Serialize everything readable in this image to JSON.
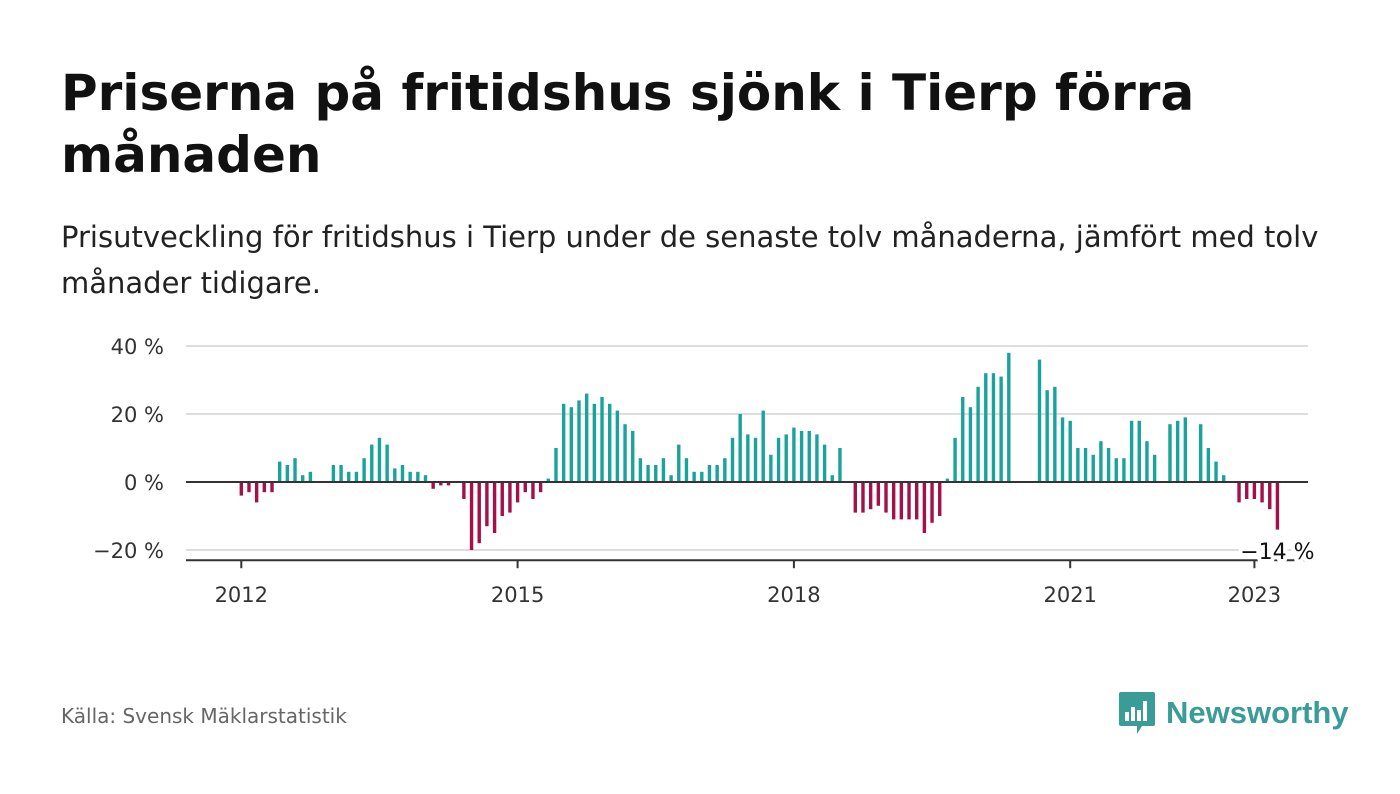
{
  "title": "Priserna på fritidshus sjönk i Tierp förra månaden",
  "subtitle": "Prisutveckling för fritidshus i Tierp under de senaste tolv månaderna, jämfört med tolv månader tidigare.",
  "source": "Källa: Svensk Mäklarstatistik",
  "brand": {
    "name": "Newsworthy",
    "color": "#3a9c96"
  },
  "chart_data": {
    "type": "bar",
    "x_start": "2012-01",
    "y_unit": "%",
    "ylim": [
      -23,
      40
    ],
    "y_ticks": [
      40,
      20,
      0,
      -20
    ],
    "y_tick_labels": [
      "40 %",
      "20 %",
      "0 %",
      "−20 %"
    ],
    "x_ticks": [
      "2012",
      "2015",
      "2018",
      "2021",
      "2023"
    ],
    "grid": true,
    "colors": {
      "positive": "#1aa39a",
      "negative": "#a3104a"
    },
    "last_value_label": "−14 %",
    "values": [
      -4,
      -3,
      -6,
      -3,
      -3,
      6,
      5,
      7,
      2,
      3,
      null,
      null,
      5,
      5,
      3,
      3,
      7,
      11,
      13,
      11,
      4,
      5,
      3,
      3,
      2,
      -2,
      -1,
      -1,
      null,
      -5,
      -20,
      -18,
      -13,
      -15,
      -10,
      -9,
      -6,
      -3,
      -5,
      -3,
      1,
      10,
      23,
      22,
      24,
      26,
      23,
      25,
      23,
      21,
      17,
      15,
      7,
      5,
      5,
      7,
      2,
      11,
      7,
      3,
      3,
      5,
      5,
      7,
      13,
      20,
      14,
      13,
      21,
      8,
      13,
      14,
      16,
      15,
      15,
      14,
      11,
      2,
      10,
      null,
      -9,
      -9,
      -8,
      -7,
      -9,
      -11,
      -11,
      -11,
      -11,
      -15,
      -12,
      -10,
      1,
      13,
      25,
      22,
      28,
      32,
      32,
      31,
      38,
      null,
      null,
      null,
      36,
      27,
      28,
      19,
      18,
      10,
      10,
      8,
      12,
      10,
      7,
      7,
      18,
      18,
      12,
      8,
      null,
      17,
      18,
      19,
      null,
      17,
      10,
      6,
      2,
      null,
      -6,
      -5,
      -5,
      -6,
      -8,
      -14
    ]
  }
}
